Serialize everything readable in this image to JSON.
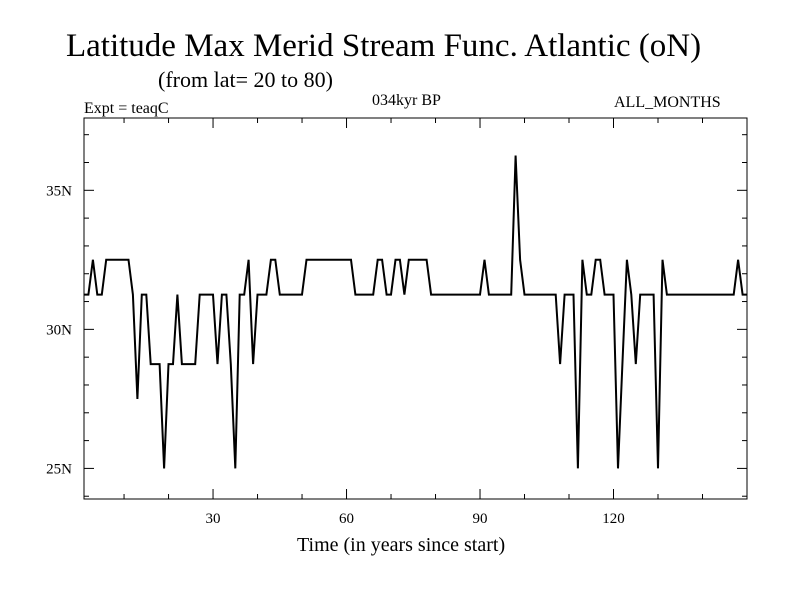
{
  "chart_data": {
    "type": "line",
    "title": "Latitude Max Merid Stream Func. Atlantic (oN)",
    "subtitle": "(from lat= 20 to 80)",
    "left_label": "Expt = teaqC",
    "center_label": "034kyr BP",
    "right_label": "ALL_MONTHS",
    "xlabel": "Time (in years since start)",
    "ylabel": "",
    "xlim": [
      1,
      150
    ],
    "ylim": [
      23.9,
      37.6
    ],
    "x_ticks": [
      30,
      60,
      90,
      120
    ],
    "x_tick_labels": [
      "30",
      "60",
      "90",
      "120"
    ],
    "y_ticks": [
      25,
      30,
      35
    ],
    "y_tick_labels": [
      "25N",
      "30N",
      "35N"
    ],
    "grid": false,
    "series": [
      {
        "x": [
          1,
          2,
          3,
          4,
          5,
          6,
          7,
          8,
          9,
          10,
          11,
          12,
          13,
          14,
          15,
          16,
          17,
          18,
          19,
          20,
          21,
          22,
          23,
          24,
          25,
          26,
          27,
          28,
          29,
          30,
          31,
          32,
          33,
          34,
          35,
          36,
          37,
          38,
          39,
          40,
          41,
          42,
          43,
          44,
          45,
          46,
          47,
          48,
          49,
          50,
          51,
          52,
          53,
          54,
          55,
          56,
          57,
          58,
          59,
          60,
          61,
          62,
          63,
          64,
          65,
          66,
          67,
          68,
          69,
          70,
          71,
          72,
          73,
          74,
          75,
          76,
          77,
          78,
          79,
          80,
          81,
          82,
          83,
          84,
          85,
          86,
          87,
          88,
          89,
          90,
          91,
          92,
          93,
          94,
          95,
          96,
          97,
          98,
          99,
          100,
          101,
          102,
          103,
          104,
          105,
          106,
          107,
          108,
          109,
          110,
          111,
          112,
          113,
          114,
          115,
          116,
          117,
          118,
          119,
          120,
          121,
          122,
          123,
          124,
          125,
          126,
          127,
          128,
          129,
          130,
          131,
          132,
          133,
          134,
          135,
          136,
          137,
          138,
          139,
          140,
          141,
          142,
          143,
          144,
          145,
          146,
          147,
          148,
          149,
          150
        ],
        "values": [
          31.25,
          31.25,
          32.5,
          31.25,
          31.25,
          32.5,
          32.5,
          32.5,
          32.5,
          32.5,
          32.5,
          31.25,
          27.5,
          31.25,
          31.25,
          28.75,
          28.75,
          28.75,
          25.0,
          28.75,
          28.75,
          31.25,
          28.75,
          28.75,
          28.75,
          28.75,
          31.25,
          31.25,
          31.25,
          31.25,
          28.75,
          31.25,
          31.25,
          28.75,
          25.0,
          31.25,
          31.25,
          32.5,
          28.75,
          31.25,
          31.25,
          31.25,
          32.5,
          32.5,
          31.25,
          31.25,
          31.25,
          31.25,
          31.25,
          31.25,
          32.5,
          32.5,
          32.5,
          32.5,
          32.5,
          32.5,
          32.5,
          32.5,
          32.5,
          32.5,
          32.5,
          31.25,
          31.25,
          31.25,
          31.25,
          31.25,
          32.5,
          32.5,
          31.25,
          31.25,
          32.5,
          32.5,
          31.25,
          32.5,
          32.5,
          32.5,
          32.5,
          32.5,
          31.25,
          31.25,
          31.25,
          31.25,
          31.25,
          31.25,
          31.25,
          31.25,
          31.25,
          31.25,
          31.25,
          31.25,
          32.5,
          31.25,
          31.25,
          31.25,
          31.25,
          31.25,
          31.25,
          36.25,
          32.5,
          31.25,
          31.25,
          31.25,
          31.25,
          31.25,
          31.25,
          31.25,
          31.25,
          28.75,
          31.25,
          31.25,
          31.25,
          25.0,
          32.5,
          31.25,
          31.25,
          32.5,
          32.5,
          31.25,
          31.25,
          31.25,
          25.0,
          28.75,
          32.5,
          31.25,
          28.75,
          31.25,
          31.25,
          31.25,
          31.25,
          25.0,
          32.5,
          31.25,
          31.25,
          31.25,
          31.25,
          31.25,
          31.25,
          31.25,
          31.25,
          31.25,
          31.25,
          31.25,
          31.25,
          31.25,
          31.25,
          31.25,
          31.25,
          32.5,
          31.25,
          31.25
        ]
      }
    ]
  }
}
